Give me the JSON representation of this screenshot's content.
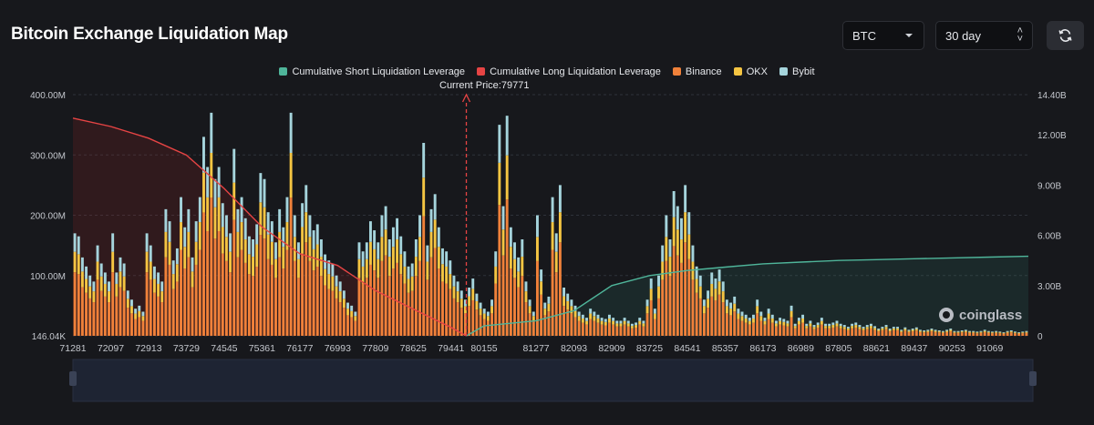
{
  "header": {
    "title": "Bitcoin Exchange Liquidation Map"
  },
  "controls": {
    "symbol_select": "BTC",
    "range_select": "30 day",
    "refresh_icon": "refresh-icon"
  },
  "watermark": "coinglass",
  "chart_data": {
    "type": "bar",
    "stacked": true,
    "legend_position": "top-center",
    "legend": [
      {
        "name": "Cumulative Short Liquidation Leverage",
        "color": "#4fb59a"
      },
      {
        "name": "Cumulative Long Liquidation Leverage",
        "color": "#e64444"
      },
      {
        "name": "Binance",
        "color": "#f0813a"
      },
      {
        "name": "OKX",
        "color": "#f5c542"
      },
      {
        "name": "Bybit",
        "color": "#a5d4dc"
      }
    ],
    "current_price_label": "Current Price:79771",
    "current_price": 79771,
    "y_left": {
      "ticks": [
        "146.04K",
        "100.00M",
        "200.00M",
        "300.00M",
        "400.00M"
      ],
      "range": [
        0,
        400
      ]
    },
    "y_right": {
      "ticks": [
        "0",
        "3.00B",
        "6.00B",
        "9.00B",
        "12.00B",
        "14.40B"
      ],
      "range": [
        0,
        14.4
      ]
    },
    "x_ticks": [
      "71281",
      "72097",
      "72913",
      "73729",
      "74545",
      "75361",
      "76177",
      "76993",
      "77809",
      "78625",
      "79441",
      "80155",
      "81277",
      "82093",
      "82909",
      "83725",
      "84541",
      "85357",
      "86173",
      "86989",
      "87805",
      "88621",
      "89437",
      "90253",
      "91069"
    ],
    "grid": true,
    "bar_totals_M": [
      170,
      165,
      130,
      115,
      100,
      90,
      150,
      120,
      105,
      90,
      170,
      105,
      130,
      120,
      75,
      60,
      45,
      50,
      40,
      170,
      150,
      115,
      105,
      90,
      210,
      190,
      125,
      145,
      230,
      180,
      210,
      130,
      190,
      230,
      330,
      280,
      370,
      260,
      280,
      220,
      200,
      170,
      310,
      210,
      230,
      195,
      165,
      160,
      185,
      270,
      260,
      205,
      190,
      155,
      210,
      180,
      230,
      370,
      200,
      155,
      220,
      250,
      200,
      175,
      185,
      160,
      135,
      125,
      120,
      100,
      90,
      75,
      55,
      50,
      40,
      155,
      140,
      155,
      190,
      175,
      155,
      200,
      215,
      160,
      180,
      195,
      165,
      140,
      115,
      120,
      160,
      200,
      320,
      150,
      210,
      235,
      180,
      145,
      140,
      125,
      100,
      90,
      75,
      60,
      80,
      95,
      70,
      55,
      45,
      40,
      60,
      140,
      350,
      215,
      365,
      180,
      155,
      130,
      160,
      90,
      60,
      40,
      200,
      110,
      55,
      65,
      230,
      170,
      250,
      80,
      70,
      60,
      50,
      40,
      35,
      30,
      45,
      40,
      35,
      30,
      28,
      35,
      30,
      25,
      25,
      30,
      25,
      20,
      22,
      30,
      25,
      60,
      95,
      45,
      100,
      150,
      200,
      160,
      240,
      215,
      195,
      250,
      205,
      150,
      115,
      100,
      60,
      75,
      105,
      95,
      110,
      90,
      60,
      55,
      65,
      45,
      40,
      35,
      30,
      35,
      60,
      40,
      30,
      45,
      35,
      25,
      30,
      28,
      25,
      50,
      20,
      30,
      35,
      20,
      25,
      18,
      22,
      30,
      20,
      20,
      22,
      25,
      20,
      18,
      15,
      20,
      22,
      18,
      15,
      18,
      20,
      16,
      12,
      15,
      18,
      12,
      15,
      15,
      10,
      14,
      10,
      12,
      14,
      10,
      9,
      10,
      12,
      10,
      9,
      8,
      10,
      12,
      8,
      8,
      9,
      10,
      8,
      8,
      7,
      8,
      10,
      8,
      7,
      8,
      7,
      6,
      8,
      9,
      7,
      6,
      7,
      8
    ],
    "cumulative_long_B": [
      [
        71281,
        13.0
      ],
      [
        72097,
        12.5
      ],
      [
        72913,
        11.8
      ],
      [
        73729,
        10.8
      ],
      [
        74545,
        8.8
      ],
      [
        75361,
        6.5
      ],
      [
        76177,
        4.9
      ],
      [
        76993,
        4.2
      ],
      [
        77809,
        2.7
      ],
      [
        78625,
        1.6
      ],
      [
        79441,
        0.5
      ],
      [
        79771,
        0
      ]
    ],
    "cumulative_short_B": [
      [
        79771,
        0
      ],
      [
        80155,
        0.6
      ],
      [
        81277,
        0.9
      ],
      [
        82093,
        1.5
      ],
      [
        82909,
        3.0
      ],
      [
        83725,
        3.6
      ],
      [
        84541,
        3.9
      ],
      [
        85357,
        4.1
      ],
      [
        86173,
        4.3
      ],
      [
        86989,
        4.4
      ],
      [
        87805,
        4.5
      ],
      [
        88621,
        4.55
      ],
      [
        89437,
        4.6
      ],
      [
        90253,
        4.65
      ],
      [
        91069,
        4.7
      ],
      [
        91900,
        4.75
      ]
    ]
  }
}
